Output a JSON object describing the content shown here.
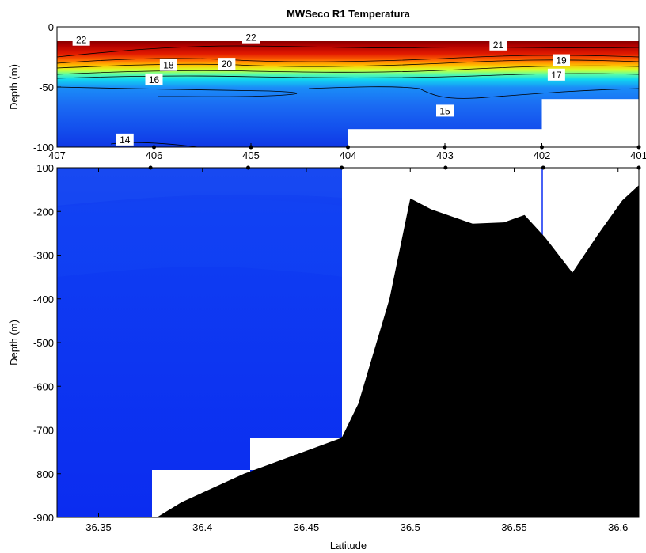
{
  "chart_data": [
    {
      "type": "heatmap",
      "panel": "upper",
      "title": "MWSeco R1 Temperatura",
      "ylabel": "Depth (m)",
      "ylim": [
        -100,
        0
      ],
      "xlim": [
        407,
        401
      ],
      "y_ticks": [
        "0",
        "-50",
        "-100"
      ],
      "y_tick_values": [
        0,
        -50,
        -100
      ],
      "x_ticks": [
        "407",
        "406",
        "405",
        "404",
        "403",
        "402",
        "401"
      ],
      "x_tick_values": [
        407,
        406,
        405,
        404,
        403,
        402,
        401
      ],
      "stations": [
        406,
        405,
        404,
        403,
        402,
        401
      ],
      "contour_labels": [
        {
          "text": "22",
          "x": 406.75,
          "y": -11
        },
        {
          "text": "22",
          "x": 405.0,
          "y": -9
        },
        {
          "text": "21",
          "x": 402.45,
          "y": -15
        },
        {
          "text": "19",
          "x": 401.8,
          "y": -28
        },
        {
          "text": "18",
          "x": 405.85,
          "y": -32
        },
        {
          "text": "20",
          "x": 405.25,
          "y": -31
        },
        {
          "text": "17",
          "x": 401.85,
          "y": -40
        },
        {
          "text": "16",
          "x": 406.0,
          "y": -44
        },
        {
          "text": "15",
          "x": 403.0,
          "y": -70
        },
        {
          "text": "14",
          "x": 406.3,
          "y": -94
        }
      ],
      "missing_regions": [
        {
          "x_from": 404.0,
          "x_to": 401.0,
          "depth_from": -85,
          "depth_to": -100
        },
        {
          "x_from": 402.0,
          "x_to": 401.0,
          "depth_from": -60,
          "depth_to": -100
        }
      ]
    },
    {
      "type": "heatmap",
      "panel": "lower",
      "xlabel": "Latitude",
      "ylabel": "Depth (m)",
      "ylim": [
        -900,
        -100
      ],
      "xlim": [
        36.33,
        36.61
      ],
      "y_ticks": [
        "-100",
        "-200",
        "-300",
        "-400",
        "-500",
        "-600",
        "-700",
        "-800",
        "-900"
      ],
      "y_tick_values": [
        -100,
        -200,
        -300,
        -400,
        -500,
        -600,
        -700,
        -800,
        -900
      ],
      "x_ticks": [
        "36.35",
        "36.4",
        "36.45",
        "36.5",
        "36.55",
        "36.6"
      ],
      "x_tick_values": [
        36.35,
        36.4,
        36.45,
        36.5,
        36.55,
        36.6
      ],
      "stations_lat": [
        36.375,
        36.422,
        36.467,
        36.517,
        36.564,
        36.61
      ],
      "bathymetry": [
        {
          "x": 36.378,
          "y": -900
        },
        {
          "x": 36.39,
          "y": -865
        },
        {
          "x": 36.42,
          "y": -800
        },
        {
          "x": 36.467,
          "y": -718
        },
        {
          "x": 36.475,
          "y": -640
        },
        {
          "x": 36.49,
          "y": -400
        },
        {
          "x": 36.5,
          "y": -170
        },
        {
          "x": 36.51,
          "y": -195
        },
        {
          "x": 36.53,
          "y": -228
        },
        {
          "x": 36.545,
          "y": -225
        },
        {
          "x": 36.555,
          "y": -208
        },
        {
          "x": 36.565,
          "y": -260
        },
        {
          "x": 36.578,
          "y": -340
        },
        {
          "x": 36.59,
          "y": -255
        },
        {
          "x": 36.602,
          "y": -175
        },
        {
          "x": 36.61,
          "y": -140
        }
      ],
      "colors": {
        "deep_water": "#0b2cf2",
        "mid_water": "#0f3cf4",
        "seafloor": "#000000"
      }
    }
  ]
}
